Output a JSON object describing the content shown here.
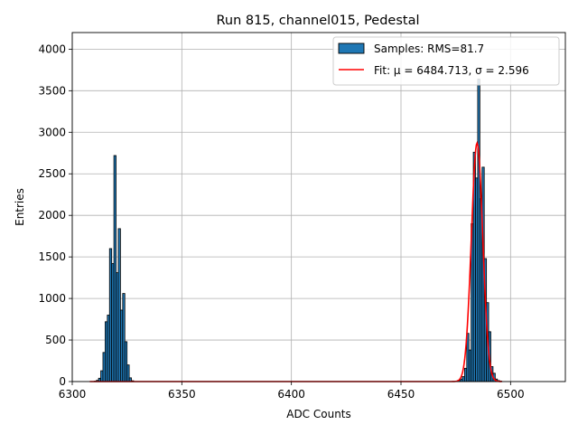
{
  "chart_data": {
    "type": "bar",
    "title": "Run 815, channel015, Pedestal",
    "xlabel": "ADC Counts",
    "ylabel": "Entries",
    "xlim": [
      6300,
      6525
    ],
    "ylim": [
      0,
      4200
    ],
    "xticks": [
      6300,
      6350,
      6400,
      6450,
      6500
    ],
    "yticks": [
      0,
      500,
      1000,
      1500,
      2000,
      2500,
      3000,
      3500,
      4000
    ],
    "grid": true,
    "legend_position": "top-right",
    "series": [
      {
        "name": "Samples: RMS=81.7",
        "kind": "histogram",
        "color": "#1f77b4",
        "edge_color": "#000000",
        "bin_width": 1,
        "bins": [
          [
            6310,
            5
          ],
          [
            6311,
            15
          ],
          [
            6312,
            40
          ],
          [
            6313,
            130
          ],
          [
            6314,
            350
          ],
          [
            6315,
            720
          ],
          [
            6316,
            800
          ],
          [
            6317,
            1600
          ],
          [
            6318,
            1420
          ],
          [
            6319,
            2720
          ],
          [
            6320,
            1310
          ],
          [
            6321,
            1840
          ],
          [
            6322,
            860
          ],
          [
            6323,
            1060
          ],
          [
            6324,
            480
          ],
          [
            6325,
            200
          ],
          [
            6326,
            45
          ],
          [
            6327,
            10
          ],
          [
            6475,
            5
          ],
          [
            6476,
            15
          ],
          [
            6477,
            30
          ],
          [
            6478,
            60
          ],
          [
            6479,
            160
          ],
          [
            6480,
            580
          ],
          [
            6481,
            380
          ],
          [
            6482,
            1900
          ],
          [
            6483,
            2760
          ],
          [
            6484,
            2450
          ],
          [
            6485,
            3640
          ],
          [
            6486,
            2200
          ],
          [
            6487,
            2580
          ],
          [
            6488,
            1480
          ],
          [
            6489,
            950
          ],
          [
            6490,
            600
          ],
          [
            6491,
            180
          ],
          [
            6492,
            100
          ],
          [
            6493,
            30
          ],
          [
            6494,
            12
          ],
          [
            6495,
            5
          ]
        ]
      },
      {
        "name": "Fit: μ = 6484.713, σ = 2.596",
        "kind": "gaussian",
        "color": "#ff0000",
        "mu": 6484.713,
        "sigma": 2.596,
        "amplitude": 2870,
        "range": [
          6308,
          6496
        ]
      }
    ]
  }
}
